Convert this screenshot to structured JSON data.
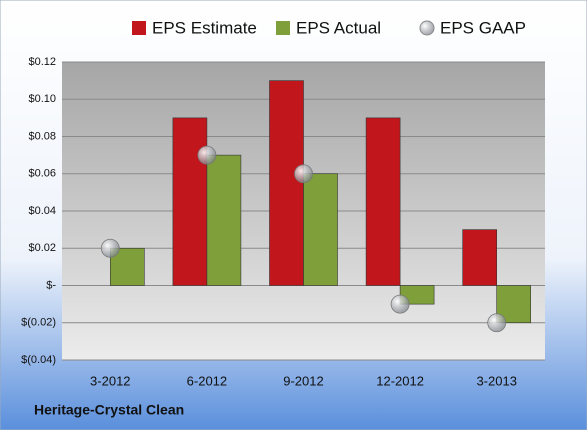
{
  "chart_data": {
    "type": "bar",
    "categories": [
      "3-2012",
      "6-2012",
      "9-2012",
      "12-2012",
      "3-2013"
    ],
    "series": [
      {
        "name": "EPS Estimate",
        "color": "#c0161c",
        "values": [
          null,
          0.09,
          0.11,
          0.09,
          0.03
        ]
      },
      {
        "name": "EPS Actual",
        "color": "#7f9f3a",
        "values": [
          0.02,
          0.07,
          0.06,
          -0.01,
          -0.02
        ]
      },
      {
        "name": "EPS GAAP",
        "color": "#a9aeb6",
        "type": "scatter",
        "values": [
          0.02,
          0.07,
          0.06,
          -0.01,
          -0.02
        ]
      }
    ],
    "ylim": [
      -0.04,
      0.12
    ],
    "yticks": [
      {
        "value": -0.04,
        "label": "$(0.04)"
      },
      {
        "value": -0.02,
        "label": "$(0.02)"
      },
      {
        "value": 0,
        "label": "$-"
      },
      {
        "value": 0.02,
        "label": "$0.02"
      },
      {
        "value": 0.04,
        "label": "$0.04"
      },
      {
        "value": 0.06,
        "label": "$0.06"
      },
      {
        "value": 0.08,
        "label": "$0.08"
      },
      {
        "value": 0.1,
        "label": "$0.10"
      },
      {
        "value": 0.12,
        "label": "$0.12"
      }
    ],
    "grid": true,
    "legend": "top",
    "footer": "Heritage-Crystal Clean"
  }
}
